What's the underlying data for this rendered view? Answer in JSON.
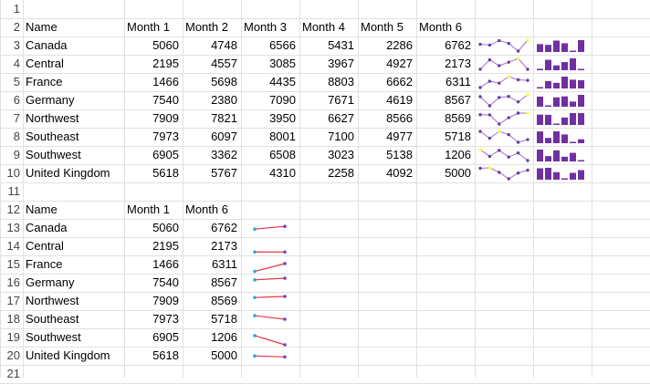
{
  "row_numbers": [
    "1",
    "2",
    "3",
    "4",
    "5",
    "6",
    "7",
    "8",
    "9",
    "10",
    "11",
    "12",
    "13",
    "14",
    "15",
    "16",
    "17",
    "18",
    "19",
    "20",
    "21"
  ],
  "table1": {
    "headers": [
      "Name",
      "Month 1",
      "Month 2",
      "Month 3",
      "Month 4",
      "Month 5",
      "Month 6"
    ],
    "rows": [
      {
        "name": "Canada",
        "values": [
          5060,
          4748,
          6566,
          5431,
          2286,
          6762
        ]
      },
      {
        "name": "Central",
        "values": [
          2195,
          4557,
          3085,
          3967,
          4927,
          2173
        ]
      },
      {
        "name": "France",
        "values": [
          1466,
          5698,
          4435,
          8803,
          6662,
          6311
        ]
      },
      {
        "name": "Germany",
        "values": [
          7540,
          2380,
          7090,
          7671,
          4619,
          8567
        ]
      },
      {
        "name": "Northwest",
        "values": [
          7909,
          7821,
          3950,
          6627,
          8566,
          8569
        ]
      },
      {
        "name": "Southeast",
        "values": [
          7973,
          6097,
          8001,
          7100,
          4977,
          5718
        ]
      },
      {
        "name": "Southwest",
        "values": [
          6905,
          3362,
          6508,
          3023,
          5138,
          1206
        ]
      },
      {
        "name": "United Kingdom",
        "values": [
          5618,
          5767,
          4310,
          2258,
          4092,
          5000
        ]
      }
    ]
  },
  "table2": {
    "headers": [
      "Name",
      "Month 1",
      "Month 6"
    ],
    "rows": [
      {
        "name": "Canada",
        "values": [
          5060,
          6762
        ]
      },
      {
        "name": "Central",
        "values": [
          2195,
          2173
        ]
      },
      {
        "name": "France",
        "values": [
          1466,
          6311
        ]
      },
      {
        "name": "Germany",
        "values": [
          7540,
          8567
        ]
      },
      {
        "name": "Northwest",
        "values": [
          7909,
          8569
        ]
      },
      {
        "name": "Southeast",
        "values": [
          7973,
          5718
        ]
      },
      {
        "name": "Southwest",
        "values": [
          6905,
          1206
        ]
      },
      {
        "name": "United Kingdom",
        "values": [
          5618,
          5000
        ]
      }
    ]
  },
  "colors": {
    "spark_line": "#9b72c8",
    "spark_marker": "#6a3aa0",
    "spark_high": "#ffff33",
    "spark_column": "#7030a0",
    "slope_line": "#e8333c",
    "slope_start": "#2aa7d9",
    "slope_end": "#7a3fc0",
    "gridline": "#e1e1e1",
    "row_number_text": "#444444"
  }
}
